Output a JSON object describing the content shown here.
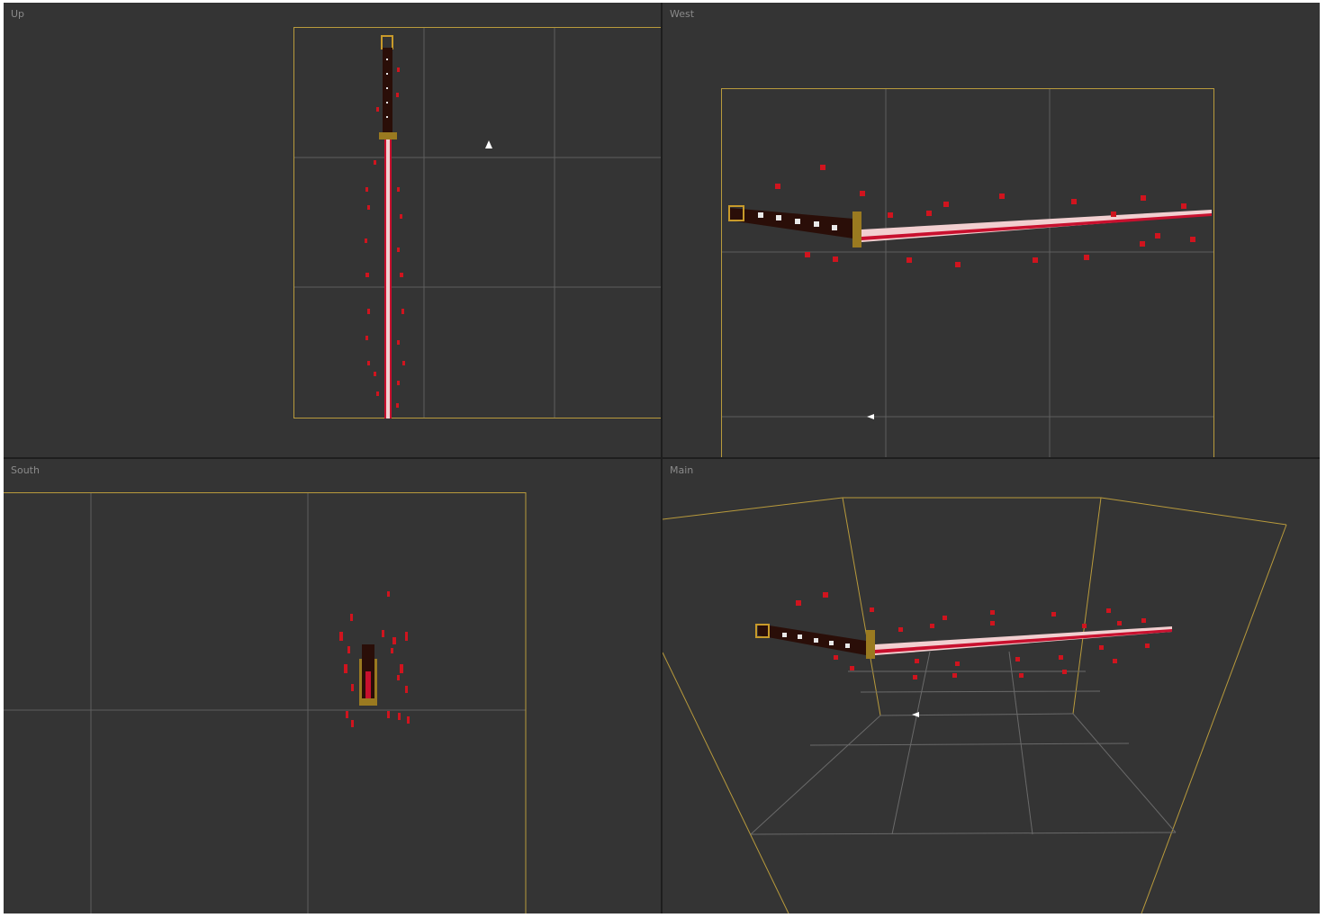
{
  "viewports": {
    "up": {
      "label": "Up"
    },
    "west": {
      "label": "West"
    },
    "south": {
      "label": "South"
    },
    "main": {
      "label": "Main"
    }
  },
  "colors": {
    "background": "#343434",
    "bounds": "#b89a3c",
    "grid": "#6a6a6a",
    "handle": "#2a0e08",
    "blade": "#f2cfd0",
    "blade_edge": "#c8102e",
    "particle": "#d0141e",
    "guard": "#9a7a20"
  },
  "icons": {
    "pivot": "triangle-marker-icon"
  }
}
